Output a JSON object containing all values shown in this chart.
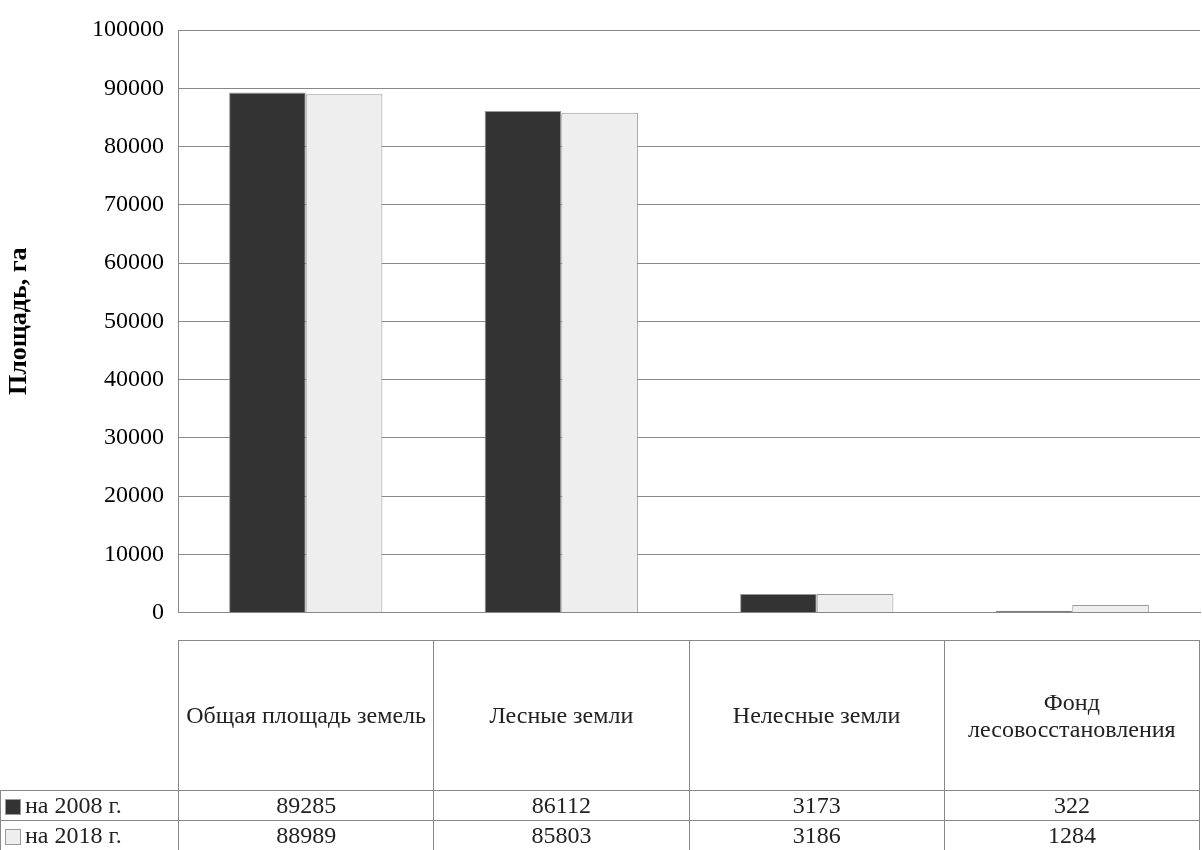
{
  "chart_data": {
    "type": "bar",
    "ylabel": "Площадь, га",
    "categories": [
      "Общая площадь земель",
      "Лесные земли",
      "Нелесные земли",
      "Фонд лесовосстановления"
    ],
    "series": [
      {
        "name": "на 2008 г.",
        "color": "#333333",
        "values": [
          89285,
          86112,
          3173,
          322
        ]
      },
      {
        "name": "на 2018 г.",
        "color": "#eeeeee",
        "values": [
          88989,
          85803,
          3186,
          1284
        ]
      }
    ],
    "ylim": [
      0,
      100000
    ],
    "yticks": [
      0,
      10000,
      20000,
      30000,
      40000,
      50000,
      60000,
      70000,
      80000,
      90000,
      100000
    ],
    "grid": "y",
    "legend": "bottom",
    "data_labels": true
  }
}
